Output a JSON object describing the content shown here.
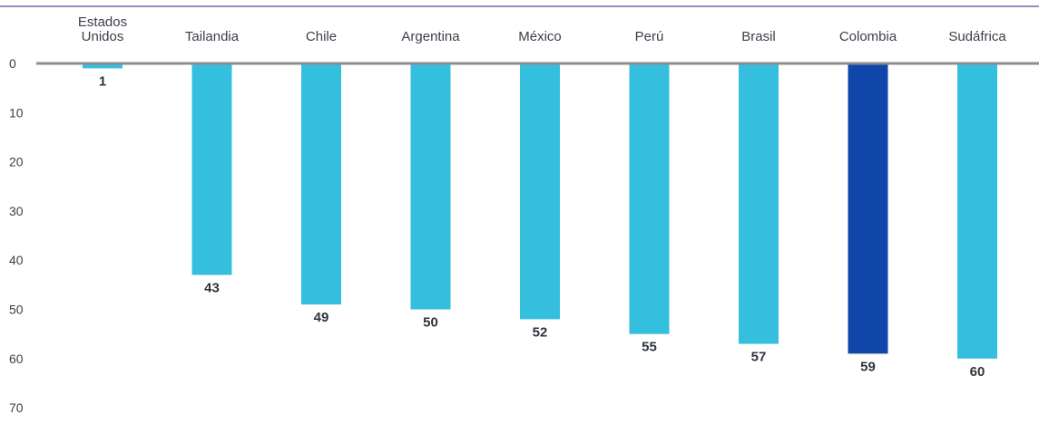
{
  "chart_data": {
    "type": "bar",
    "orientation": "vertical-inverted",
    "categories": [
      [
        "Estados",
        "Unidos"
      ],
      [
        "Tailandia"
      ],
      [
        "Chile"
      ],
      [
        "Argentina"
      ],
      [
        "México"
      ],
      [
        "Perú"
      ],
      [
        "Brasil"
      ],
      [
        "Colombia"
      ],
      [
        "Sudáfrica"
      ]
    ],
    "values": [
      1,
      43,
      49,
      50,
      52,
      55,
      57,
      59,
      60
    ],
    "highlight_category": "Colombia",
    "colors": {
      "bar": "#35bfdf",
      "highlight": "#1045a9",
      "top_rule": "#1a237e",
      "zero_line": "#8c8c8c"
    },
    "y_ticks": [
      0,
      10,
      20,
      30,
      40,
      50,
      60,
      70
    ],
    "ylim": [
      0,
      70
    ],
    "y_inverted": true,
    "category_axis_position": "top",
    "grid": false,
    "legend": "none",
    "title": "",
    "xlabel": "",
    "ylabel": ""
  }
}
